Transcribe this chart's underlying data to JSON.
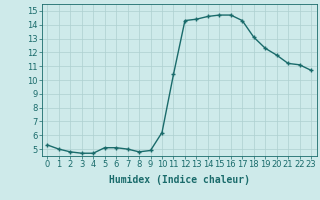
{
  "x": [
    0,
    1,
    2,
    3,
    4,
    5,
    6,
    7,
    8,
    9,
    10,
    11,
    12,
    13,
    14,
    15,
    16,
    17,
    18,
    19,
    20,
    21,
    22,
    23
  ],
  "y": [
    5.3,
    5.0,
    4.8,
    4.7,
    4.7,
    5.1,
    5.1,
    5.0,
    4.8,
    4.9,
    6.2,
    10.4,
    14.3,
    14.4,
    14.6,
    14.7,
    14.7,
    14.3,
    13.1,
    12.3,
    11.8,
    11.2,
    11.1,
    10.7
  ],
  "line_color": "#1a6b6b",
  "marker": "+",
  "marker_size": 3,
  "marker_color": "#1a6b6b",
  "line_width": 1.0,
  "background_color": "#ceeaea",
  "grid_color": "#aed0d0",
  "xlabel": "Humidex (Indice chaleur)",
  "xlim": [
    -0.5,
    23.5
  ],
  "ylim": [
    4.5,
    15.5
  ],
  "yticks": [
    5,
    6,
    7,
    8,
    9,
    10,
    11,
    12,
    13,
    14,
    15
  ],
  "xticks": [
    0,
    1,
    2,
    3,
    4,
    5,
    6,
    7,
    8,
    9,
    10,
    11,
    12,
    13,
    14,
    15,
    16,
    17,
    18,
    19,
    20,
    21,
    22,
    23
  ],
  "xlabel_fontsize": 7,
  "tick_fontsize": 6,
  "tick_color": "#1a6b6b",
  "xlabel_fontweight": "bold"
}
